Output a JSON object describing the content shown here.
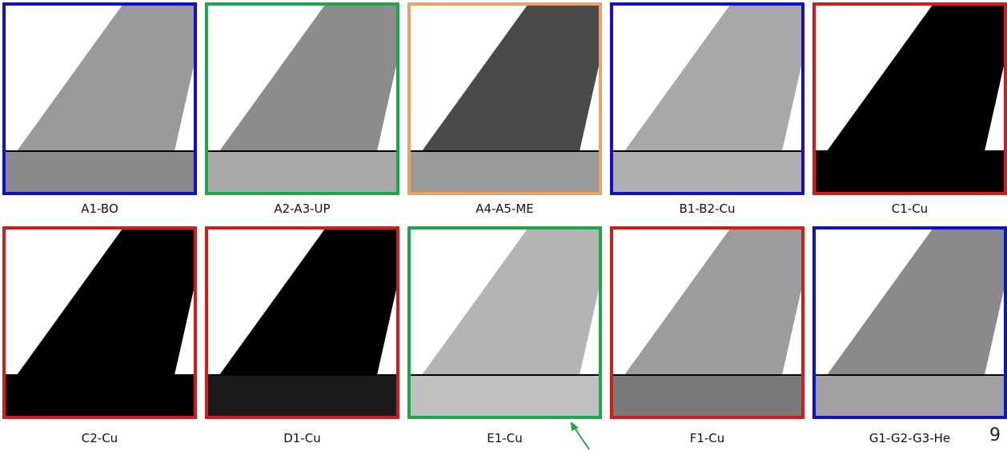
{
  "panels": [
    {
      "label": "A1-BO",
      "border": "#1010c8",
      "fin": "#9a9a9a",
      "body": "#8a8a8a"
    },
    {
      "label": "A2-A3-UP",
      "border": "#1fa64a",
      "fin": "#8c8c8c",
      "body": "#a8a8a8"
    },
    {
      "label": "A4-A5-ME",
      "border": "#f0a060",
      "fin": "#4a4a4a",
      "body": "#9a9a9a"
    },
    {
      "label": "B1-B2-Cu",
      "border": "#1010c8",
      "fin": "#a8a8a8",
      "body": "#b0b0b0"
    },
    {
      "label": "C1-Cu",
      "border": "#d41a1a",
      "fin": "#000000",
      "body": "#000000"
    },
    {
      "label": "C2-Cu",
      "border": "#d41a1a",
      "fin": "#000000",
      "body": "#000000"
    },
    {
      "label": "D1-Cu",
      "border": "#d41a1a",
      "fin": "#000000",
      "body": "#1a1a1a"
    },
    {
      "label": "E1-Cu",
      "border": "#1fa64a",
      "fin": "#b4b4b4",
      "body": "#c0c0c0"
    },
    {
      "label": "F1-Cu",
      "border": "#d41a1a",
      "fin": "#9c9c9c",
      "body": "#7a7a7a"
    },
    {
      "label": "G1-G2-G3-He",
      "border": "#1010c8",
      "fin": "#8a8a8a",
      "body": "#a0a0a0"
    }
  ],
  "page_number": "9"
}
